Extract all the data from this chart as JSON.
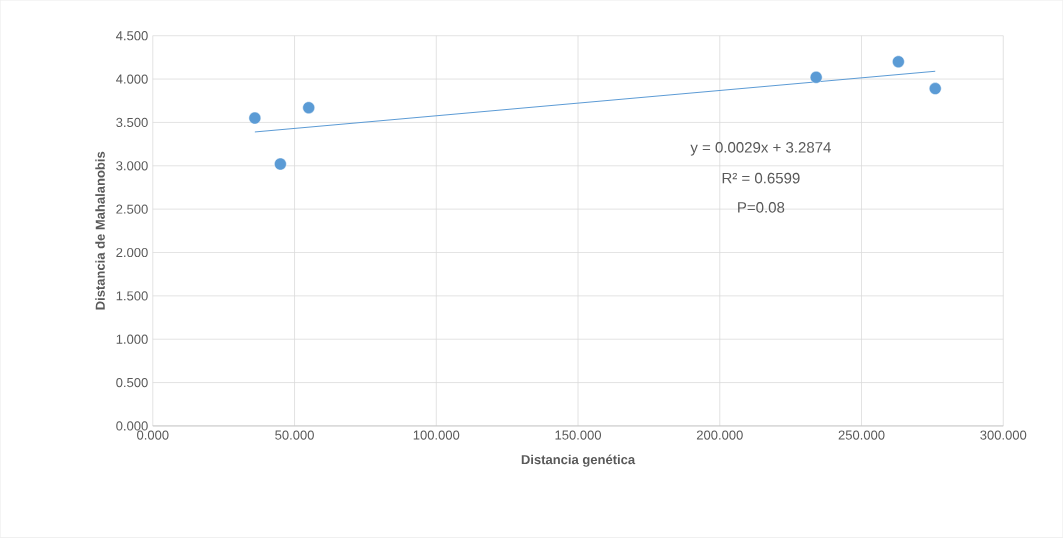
{
  "chart_data": {
    "type": "scatter",
    "xlabel": "Distancia genética",
    "ylabel": "Distancia de Mahalanobis",
    "xlim": [
      0,
      300
    ],
    "ylim": [
      0,
      4.5
    ],
    "xticks": [
      {
        "value": 0,
        "label": "0.000"
      },
      {
        "value": 50,
        "label": "50.000"
      },
      {
        "value": 100,
        "label": "100.000"
      },
      {
        "value": 150,
        "label": "150.000"
      },
      {
        "value": 200,
        "label": "200.000"
      },
      {
        "value": 250,
        "label": "250.000"
      },
      {
        "value": 300,
        "label": "300.000"
      }
    ],
    "yticks": [
      {
        "value": 0,
        "label": "0.000"
      },
      {
        "value": 0.5,
        "label": "0.500"
      },
      {
        "value": 1,
        "label": "1.000"
      },
      {
        "value": 1.5,
        "label": "1.500"
      },
      {
        "value": 2,
        "label": "2.000"
      },
      {
        "value": 2.5,
        "label": "2.500"
      },
      {
        "value": 3,
        "label": "3.000"
      },
      {
        "value": 3.5,
        "label": "3.500"
      },
      {
        "value": 4,
        "label": "4.000"
      },
      {
        "value": 4.5,
        "label": "4.500"
      }
    ],
    "grid": true,
    "series": [
      {
        "color": "#5b9bd5",
        "marker": "circle",
        "x": [
          36,
          45,
          55,
          234,
          263,
          276
        ],
        "values": [
          3.55,
          3.02,
          3.67,
          4.02,
          4.2,
          3.89
        ]
      },
      {
        "type": "line",
        "marker": "none",
        "color": "#5b9bd5",
        "x": [
          36,
          276
        ],
        "values": [
          3.39,
          4.09
        ]
      }
    ],
    "annotations": [
      "y = 0.0029x + 3.2874",
      "R² = 0.6599",
      "P=0.08"
    ]
  }
}
